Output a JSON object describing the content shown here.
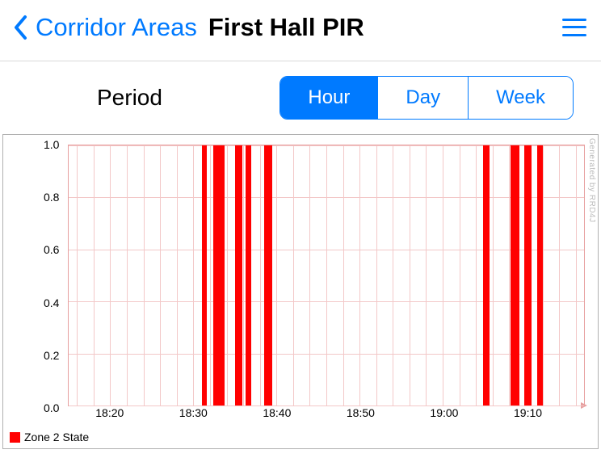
{
  "nav": {
    "back_label": "Corridor Areas",
    "title": "First Hall PIR"
  },
  "controls": {
    "period_label": "Period",
    "segments": [
      "Hour",
      "Day",
      "Week"
    ],
    "active_index": 0
  },
  "chart": {
    "type": "bar",
    "series_name": "Zone 2 State",
    "series_color": "#ff0000",
    "background_color": "#ffffff",
    "grid_color": "#f3c8c8",
    "axis_color": "#e7a0a0",
    "y": {
      "min": 0.0,
      "max": 1.0,
      "ticks": [
        0.0,
        0.2,
        0.4,
        0.6,
        0.8,
        1.0
      ]
    },
    "x": {
      "min": 1095,
      "max": 1157,
      "ticks": [
        {
          "v": 1100,
          "label": "18:20"
        },
        {
          "v": 1110,
          "label": "18:30"
        },
        {
          "v": 1120,
          "label": "18:40"
        },
        {
          "v": 1130,
          "label": "18:50"
        },
        {
          "v": 1140,
          "label": "19:00"
        },
        {
          "v": 1150,
          "label": "19:10"
        }
      ],
      "minor_step": 2
    },
    "pulses": [
      {
        "start": 1111.0,
        "end": 1111.6
      },
      {
        "start": 1112.4,
        "end": 1113.8
      },
      {
        "start": 1115.0,
        "end": 1115.9
      },
      {
        "start": 1116.3,
        "end": 1117.0
      },
      {
        "start": 1118.5,
        "end": 1119.5
      },
      {
        "start": 1144.9,
        "end": 1145.6
      },
      {
        "start": 1148.2,
        "end": 1149.2
      },
      {
        "start": 1149.8,
        "end": 1150.7
      },
      {
        "start": 1151.4,
        "end": 1152.0
      }
    ],
    "watermark": "Generated by RRD4J"
  }
}
